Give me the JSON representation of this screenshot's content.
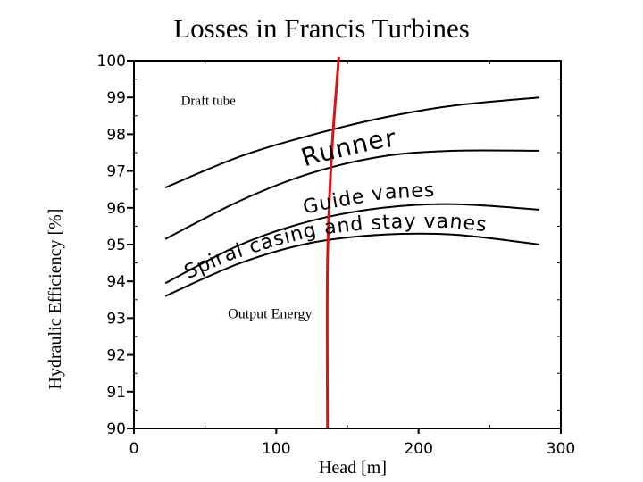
{
  "chart_data": {
    "type": "line",
    "title": "Losses in Francis Turbines",
    "xlabel": "Head [m]",
    "ylabel": "Hydraulic Efficiency [%]",
    "xlim": [
      0,
      300
    ],
    "ylim": [
      90,
      100
    ],
    "xticks": [
      0,
      100,
      200,
      300
    ],
    "xtick_labels": [
      "0",
      "100",
      "200",
      "300"
    ],
    "yticks": [
      90,
      91,
      92,
      93,
      94,
      95,
      96,
      97,
      98,
      99,
      100
    ],
    "ytick_labels": [
      "90",
      "91",
      "92",
      "93",
      "94",
      "95",
      "96",
      "97",
      "98",
      "99",
      "100"
    ],
    "grid": false,
    "series": [
      {
        "name": "Draft tube",
        "x": [
          22,
          75,
          125,
          175,
          225,
          285
        ],
        "y": [
          96.55,
          97.4,
          97.98,
          98.45,
          98.78,
          99.0
        ],
        "color": "#000000"
      },
      {
        "name": "Runner",
        "x": [
          22,
          75,
          125,
          175,
          225,
          285
        ],
        "y": [
          95.15,
          96.2,
          96.95,
          97.4,
          97.55,
          97.55
        ],
        "color": "#000000"
      },
      {
        "name": "Guide vanes",
        "x": [
          22,
          75,
          125,
          175,
          225,
          285
        ],
        "y": [
          93.95,
          95.0,
          95.65,
          96.0,
          96.1,
          95.95
        ],
        "color": "#000000"
      },
      {
        "name": "Spiral casing and stay vanes",
        "x": [
          22,
          75,
          125,
          175,
          225,
          285
        ],
        "y": [
          93.6,
          94.5,
          95.05,
          95.27,
          95.27,
          95.0
        ],
        "color": "#000000"
      },
      {
        "name": "Output Energy",
        "x": [
          136,
          136,
          139,
          144
        ],
        "y": [
          90,
          94.5,
          97.5,
          100.1
        ],
        "color": "#dd1111"
      }
    ],
    "annotations": [
      {
        "text": "Draft tube",
        "region": "upper-left"
      },
      {
        "text": "Runner",
        "along": "Runner"
      },
      {
        "text": "Guide vanes",
        "along": "Guide vanes"
      },
      {
        "text": "Spiral casing and stay vanes",
        "along": "Spiral casing and stay vanes"
      },
      {
        "text": "Output Energy",
        "region": "lower-middle"
      }
    ]
  }
}
